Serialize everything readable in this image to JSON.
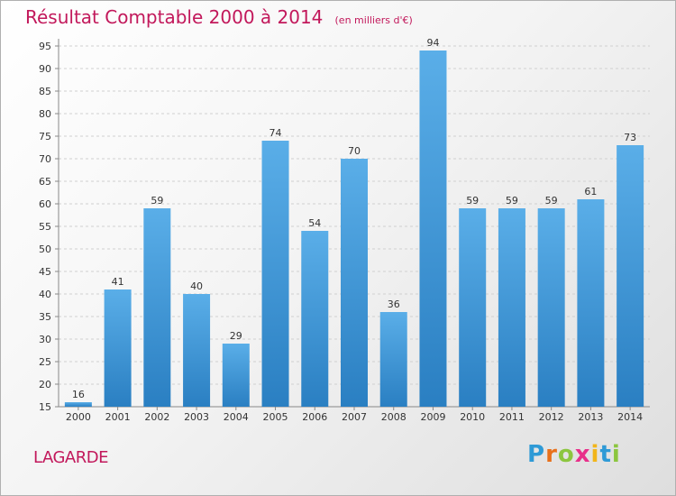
{
  "header": {
    "title": "Résultat Comptable 2000 à 2014",
    "unit": "(en milliers d'€)"
  },
  "footer": {
    "commune": "LAGARDE",
    "logo_letters": [
      "P",
      "r",
      "o",
      "x",
      "i",
      "t",
      "i"
    ],
    "logo_colors": [
      "#2e9ad6",
      "#e8701a",
      "#8cc63f",
      "#e8308a",
      "#f2b51a",
      "#2e9ad6",
      "#8cc63f"
    ]
  },
  "colors": {
    "title": "#c2185b",
    "bar_top": "#5aaee8",
    "bar_bottom": "#2a7fc2",
    "grid": "#d0d0d0"
  },
  "chart_data": {
    "type": "bar",
    "categories": [
      "2000",
      "2001",
      "2002",
      "2003",
      "2004",
      "2005",
      "2006",
      "2007",
      "2008",
      "2009",
      "2010",
      "2011",
      "2012",
      "2013",
      "2014"
    ],
    "values": [
      16,
      41,
      59,
      40,
      29,
      74,
      54,
      70,
      36,
      94,
      59,
      59,
      59,
      61,
      73
    ],
    "ylim": [
      15,
      95
    ],
    "yticks": [
      15,
      20,
      25,
      30,
      35,
      40,
      45,
      50,
      55,
      60,
      65,
      70,
      75,
      80,
      85,
      90,
      95
    ],
    "grid": true,
    "xlabel": "",
    "ylabel": ""
  }
}
